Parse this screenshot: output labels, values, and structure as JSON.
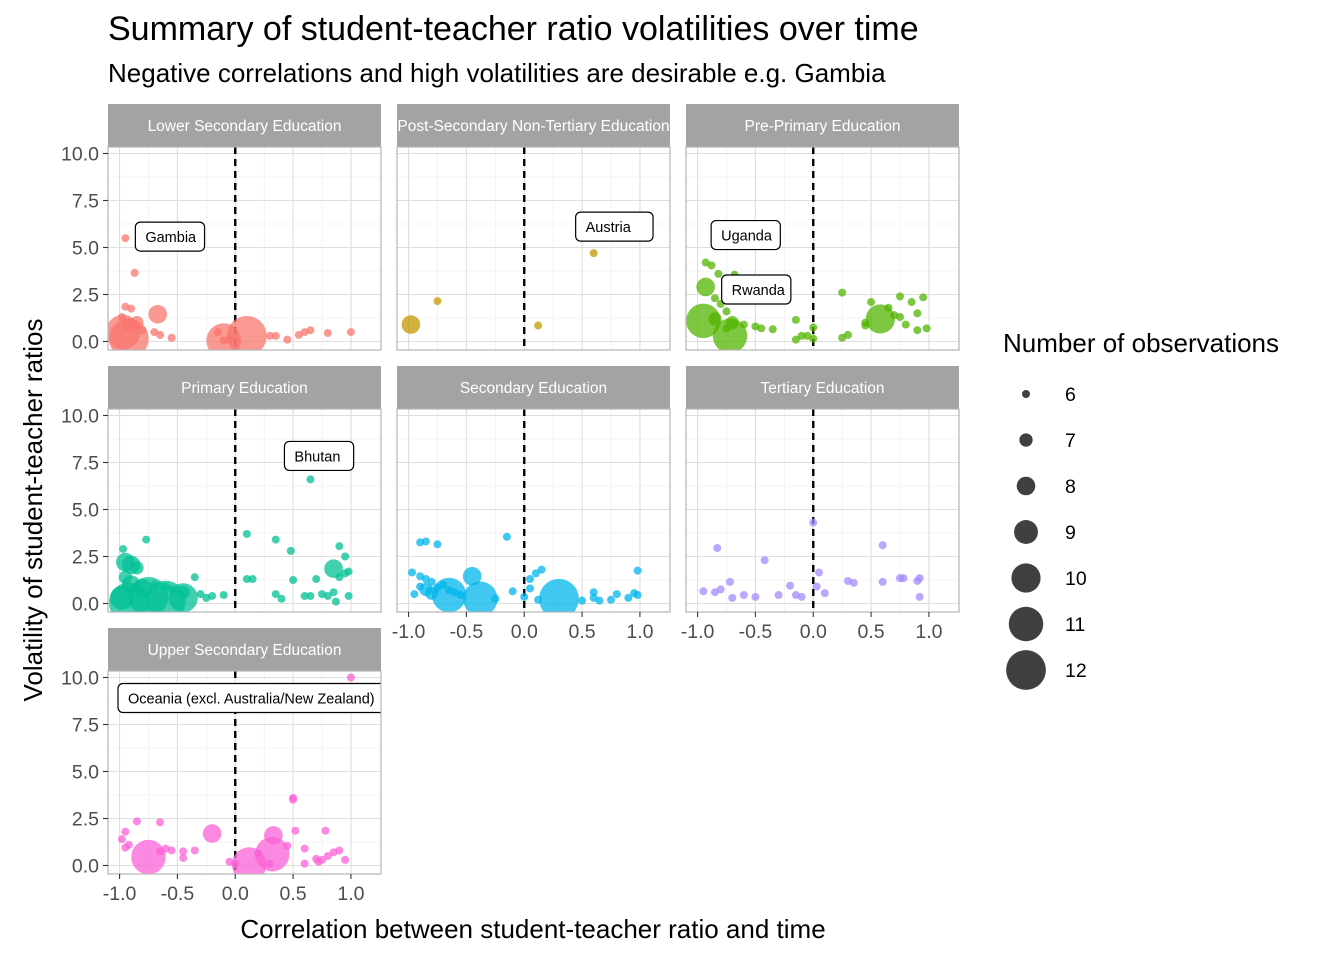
{
  "chart_data": {
    "type": "scatter",
    "title": "Summary of student-teacher ratio volatilities over time",
    "subtitle": "Negative correlations and high volatilities are desirable e.g. Gambia",
    "xlabel": "Correlation between student-teacher ratio and time",
    "ylabel": "Volatility of student-teacher ratios",
    "xlim": [
      -1.0,
      1.0
    ],
    "ylim": [
      0.0,
      10.0
    ],
    "x_ticks": [
      "-1.0",
      "-0.5",
      "0.0",
      "0.5",
      "1.0"
    ],
    "y_ticks": [
      "0.0",
      "2.5",
      "5.0",
      "7.5",
      "10.0"
    ],
    "vline_x": 0,
    "grid": true,
    "legend": {
      "title": "Number of observations",
      "position": "right",
      "entries": [
        {
          "label": "6",
          "size": 6
        },
        {
          "label": "7",
          "size": 7
        },
        {
          "label": "8",
          "size": 8
        },
        {
          "label": "9",
          "size": 9
        },
        {
          "label": "10",
          "size": 10
        },
        {
          "label": "11",
          "size": 11
        },
        {
          "label": "12",
          "size": 12
        }
      ]
    },
    "panels": [
      {
        "name": "Lower Secondary Education",
        "color": "#F8766D",
        "annotations": [
          {
            "label": "Gambia",
            "x": -0.95,
            "y": 5.5
          }
        ],
        "points": [
          [
            -0.95,
            5.5,
            6
          ],
          [
            -0.87,
            3.65,
            6
          ],
          [
            -0.95,
            1.85,
            6
          ],
          [
            -0.9,
            1.75,
            6
          ],
          [
            -0.98,
            1.3,
            6
          ],
          [
            -0.85,
            1.0,
            7
          ],
          [
            -0.92,
            0.9,
            7
          ],
          [
            -0.8,
            0.6,
            6
          ],
          [
            -0.7,
            0.5,
            6
          ],
          [
            -0.65,
            0.35,
            6
          ],
          [
            -0.55,
            0.2,
            6
          ],
          [
            -0.67,
            1.45,
            8
          ],
          [
            -0.97,
            0.5,
            11
          ],
          [
            -0.92,
            0.15,
            12
          ],
          [
            -0.15,
            0.5,
            6
          ],
          [
            -0.1,
            0.05,
            6
          ],
          [
            -0.05,
            0.1,
            6
          ],
          [
            -0.1,
            0.05,
            11
          ],
          [
            0.1,
            0.3,
            12
          ],
          [
            0.3,
            0.3,
            6
          ],
          [
            0.35,
            0.3,
            6
          ],
          [
            0.45,
            0.1,
            6
          ],
          [
            0.55,
            0.35,
            6
          ],
          [
            0.6,
            0.5,
            6
          ],
          [
            0.65,
            0.6,
            6
          ],
          [
            0.8,
            0.45,
            6
          ],
          [
            1.0,
            0.5,
            6
          ]
        ]
      },
      {
        "name": "Post-Secondary Non-Tertiary Education",
        "color": "#C49A00",
        "annotations": [
          {
            "label": "Austria",
            "x": 0.6,
            "y": 4.7
          }
        ],
        "points": [
          [
            0.6,
            4.7,
            6
          ],
          [
            -0.75,
            2.15,
            6
          ],
          [
            0.12,
            0.85,
            6
          ],
          [
            -0.98,
            0.9,
            8
          ]
        ]
      },
      {
        "name": "Pre-Primary Education",
        "color": "#53B400",
        "annotations": [
          {
            "label": "Uganda",
            "x": -0.9,
            "y": 4.2
          },
          {
            "label": "Rwanda",
            "x": -0.93,
            "y": 2.9
          }
        ],
        "points": [
          [
            -0.93,
            4.2,
            6
          ],
          [
            -0.88,
            4.05,
            6
          ],
          [
            -0.82,
            3.6,
            6
          ],
          [
            -0.68,
            3.55,
            6
          ],
          [
            -0.93,
            2.9,
            8
          ],
          [
            -0.85,
            2.3,
            6
          ],
          [
            -0.8,
            2.0,
            6
          ],
          [
            -0.75,
            1.6,
            6
          ],
          [
            -0.85,
            1.2,
            7
          ],
          [
            -0.7,
            1.0,
            7
          ],
          [
            -0.6,
            0.9,
            6
          ],
          [
            -0.75,
            0.7,
            6
          ],
          [
            -0.5,
            0.8,
            6
          ],
          [
            -0.45,
            0.7,
            6
          ],
          [
            -0.95,
            1.1,
            11
          ],
          [
            -0.72,
            0.3,
            11
          ],
          [
            -0.15,
            0.1,
            6
          ],
          [
            -0.1,
            0.3,
            6
          ],
          [
            -0.05,
            0.3,
            6
          ],
          [
            0.0,
            0.75,
            6
          ],
          [
            0.0,
            0.15,
            6
          ],
          [
            -0.35,
            0.65,
            6
          ],
          [
            -0.15,
            1.15,
            6
          ],
          [
            0.25,
            0.2,
            6
          ],
          [
            0.3,
            0.35,
            6
          ],
          [
            0.25,
            2.6,
            6
          ],
          [
            0.45,
            0.85,
            6
          ],
          [
            0.45,
            1.0,
            6
          ],
          [
            0.58,
            1.2,
            10
          ],
          [
            0.65,
            1.8,
            6
          ],
          [
            0.7,
            1.4,
            6
          ],
          [
            0.75,
            1.3,
            6
          ],
          [
            0.8,
            0.9,
            6
          ],
          [
            0.75,
            2.4,
            6
          ],
          [
            0.85,
            2.1,
            6
          ],
          [
            0.9,
            1.5,
            6
          ],
          [
            0.9,
            0.6,
            6
          ],
          [
            0.95,
            2.35,
            6
          ],
          [
            0.98,
            0.7,
            6
          ],
          [
            0.5,
            2.1,
            6
          ]
        ]
      },
      {
        "name": "Primary Education",
        "color": "#00C094",
        "annotations": [
          {
            "label": "Bhutan",
            "x": 0.65,
            "y": 6.6
          }
        ],
        "points": [
          [
            0.65,
            6.6,
            6
          ],
          [
            -0.97,
            2.9,
            6
          ],
          [
            -0.77,
            3.4,
            6
          ],
          [
            -0.95,
            2.2,
            8
          ],
          [
            -0.9,
            2.05,
            8
          ],
          [
            -0.85,
            1.9,
            7
          ],
          [
            -0.95,
            1.4,
            7
          ],
          [
            -0.9,
            1.0,
            8
          ],
          [
            -0.8,
            0.8,
            8
          ],
          [
            -0.7,
            1.0,
            6
          ],
          [
            -0.6,
            0.9,
            6
          ],
          [
            -0.55,
            0.75,
            6
          ],
          [
            -0.45,
            0.6,
            7
          ],
          [
            -0.45,
            0.3,
            10
          ],
          [
            -0.6,
            0.15,
            12
          ],
          [
            -0.75,
            0.35,
            12
          ],
          [
            -0.92,
            0.05,
            12
          ],
          [
            -0.98,
            0.3,
            9
          ],
          [
            -0.35,
            1.4,
            6
          ],
          [
            -0.3,
            0.5,
            6
          ],
          [
            -0.25,
            0.3,
            6
          ],
          [
            -0.2,
            0.4,
            6
          ],
          [
            -0.1,
            0.45,
            6
          ],
          [
            0.1,
            3.7,
            6
          ],
          [
            0.1,
            1.3,
            6
          ],
          [
            0.15,
            1.3,
            6
          ],
          [
            0.35,
            3.4,
            6
          ],
          [
            0.35,
            0.5,
            6
          ],
          [
            0.4,
            0.25,
            6
          ],
          [
            0.48,
            2.8,
            6
          ],
          [
            0.5,
            1.25,
            6
          ],
          [
            0.6,
            0.4,
            6
          ],
          [
            0.65,
            0.4,
            6
          ],
          [
            0.7,
            1.3,
            6
          ],
          [
            0.75,
            0.5,
            6
          ],
          [
            0.8,
            0.4,
            6
          ],
          [
            0.85,
            0.6,
            6
          ],
          [
            0.85,
            1.85,
            8
          ],
          [
            0.9,
            3.05,
            6
          ],
          [
            0.9,
            1.4,
            6
          ],
          [
            0.95,
            2.5,
            6
          ],
          [
            0.95,
            1.6,
            6
          ],
          [
            0.98,
            1.7,
            6
          ],
          [
            0.98,
            0.4,
            6
          ],
          [
            0.87,
            0.1,
            6
          ]
        ]
      },
      {
        "name": "Secondary Education",
        "color": "#00B6EB",
        "annotations": [],
        "points": [
          [
            -0.15,
            3.55,
            6
          ],
          [
            -0.9,
            3.25,
            6
          ],
          [
            -0.85,
            3.3,
            6
          ],
          [
            -0.75,
            3.15,
            6
          ],
          [
            -0.97,
            1.65,
            6
          ],
          [
            -0.9,
            1.45,
            6
          ],
          [
            -0.85,
            1.3,
            6
          ],
          [
            -0.8,
            1.15,
            6
          ],
          [
            -0.75,
            0.85,
            6
          ],
          [
            -0.7,
            1.0,
            6
          ],
          [
            -0.65,
            0.7,
            6
          ],
          [
            -0.6,
            0.6,
            6
          ],
          [
            -0.55,
            0.45,
            6
          ],
          [
            -0.45,
            1.45,
            8
          ],
          [
            -0.85,
            0.75,
            7
          ],
          [
            -0.8,
            0.55,
            7
          ],
          [
            -0.9,
            0.9,
            6
          ],
          [
            -0.65,
            0.45,
            11
          ],
          [
            -0.38,
            0.25,
            11
          ],
          [
            -0.95,
            0.5,
            6
          ],
          [
            -0.25,
            0.25,
            6
          ],
          [
            -0.1,
            0.65,
            6
          ],
          [
            0.0,
            0.35,
            6
          ],
          [
            0.05,
            1.3,
            6
          ],
          [
            0.1,
            1.6,
            6
          ],
          [
            0.15,
            1.8,
            6
          ],
          [
            0.05,
            0.8,
            6
          ],
          [
            0.12,
            0.2,
            6
          ],
          [
            0.3,
            0.25,
            12
          ],
          [
            0.5,
            0.15,
            6
          ],
          [
            0.6,
            0.6,
            6
          ],
          [
            0.6,
            0.3,
            6
          ],
          [
            0.65,
            0.15,
            6
          ],
          [
            0.75,
            0.2,
            6
          ],
          [
            0.8,
            0.5,
            6
          ],
          [
            0.9,
            0.3,
            6
          ],
          [
            0.95,
            0.55,
            6
          ],
          [
            0.98,
            1.75,
            6
          ],
          [
            0.98,
            0.45,
            6
          ]
        ]
      },
      {
        "name": "Tertiary Education",
        "color": "#A58AFF",
        "annotations": [],
        "points": [
          [
            0.0,
            4.3,
            6
          ],
          [
            -0.83,
            2.95,
            6
          ],
          [
            -0.42,
            2.3,
            6
          ],
          [
            0.6,
            3.1,
            6
          ],
          [
            0.05,
            1.65,
            6
          ],
          [
            -0.72,
            1.15,
            6
          ],
          [
            -0.2,
            0.95,
            6
          ],
          [
            0.03,
            0.9,
            6
          ],
          [
            -0.95,
            0.65,
            6
          ],
          [
            -0.85,
            0.6,
            6
          ],
          [
            -0.8,
            0.75,
            6
          ],
          [
            -0.7,
            0.3,
            6
          ],
          [
            -0.6,
            0.45,
            6
          ],
          [
            -0.5,
            0.35,
            6
          ],
          [
            -0.3,
            0.45,
            6
          ],
          [
            -0.15,
            0.45,
            6
          ],
          [
            -0.1,
            0.35,
            6
          ],
          [
            0.1,
            0.55,
            6
          ],
          [
            0.3,
            1.2,
            6
          ],
          [
            0.35,
            1.1,
            6
          ],
          [
            0.6,
            1.15,
            6
          ],
          [
            0.75,
            1.35,
            6
          ],
          [
            0.78,
            1.35,
            6
          ],
          [
            0.9,
            1.2,
            6
          ],
          [
            0.92,
            1.35,
            6
          ],
          [
            0.92,
            0.35,
            6
          ]
        ]
      },
      {
        "name": "Upper Secondary Education",
        "color": "#FB61D7",
        "annotations": [
          {
            "label": "Oceania (excl. Australia/New Zealand)",
            "x": 1.0,
            "y": 10.0
          }
        ],
        "points": [
          [
            1.0,
            10.0,
            6
          ],
          [
            -0.85,
            2.35,
            6
          ],
          [
            -0.65,
            2.3,
            6
          ],
          [
            -0.95,
            1.8,
            6
          ],
          [
            -0.98,
            1.4,
            6
          ],
          [
            -0.92,
            1.1,
            6
          ],
          [
            -0.95,
            0.95,
            6
          ],
          [
            -0.6,
            0.9,
            6
          ],
          [
            -0.55,
            0.8,
            6
          ],
          [
            -0.45,
            0.75,
            6
          ],
          [
            -0.35,
            0.8,
            6
          ],
          [
            -0.45,
            0.4,
            6
          ],
          [
            -0.75,
            0.45,
            11
          ],
          [
            -0.65,
            0.75,
            6
          ],
          [
            -0.2,
            1.7,
            8
          ],
          [
            -0.05,
            0.2,
            6
          ],
          [
            0.0,
            0.1,
            6
          ],
          [
            0.12,
            0.05,
            11
          ],
          [
            0.32,
            0.6,
            11
          ],
          [
            0.33,
            1.6,
            8
          ],
          [
            0.2,
            0.65,
            6
          ],
          [
            0.3,
            0.1,
            6
          ],
          [
            0.45,
            1.05,
            6
          ],
          [
            0.5,
            3.6,
            6
          ],
          [
            0.5,
            3.5,
            6
          ],
          [
            0.52,
            1.85,
            6
          ],
          [
            0.6,
            0.9,
            6
          ],
          [
            0.7,
            0.35,
            6
          ],
          [
            0.72,
            0.2,
            6
          ],
          [
            0.75,
            0.3,
            6
          ],
          [
            0.78,
            1.85,
            6
          ],
          [
            0.8,
            0.5,
            6
          ],
          [
            0.85,
            0.7,
            6
          ],
          [
            0.9,
            0.8,
            6
          ],
          [
            0.95,
            0.3,
            6
          ],
          [
            0.6,
            0.1,
            6
          ]
        ]
      }
    ]
  }
}
